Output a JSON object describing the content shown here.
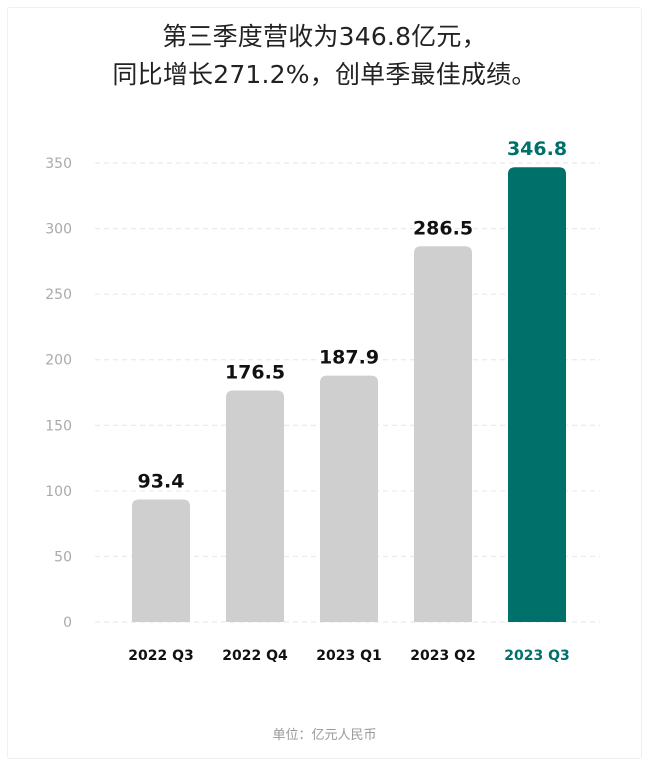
{
  "title": {
    "line1": "第三季度营收为346.8亿元，",
    "line2": "同比增长271.2%，创单季最佳成绩。"
  },
  "footnote": "单位：亿元人民币",
  "colors": {
    "bar_default": "#cfcfcf",
    "bar_highlight": "#00706b",
    "label_default": "#111111",
    "label_highlight": "#00706b",
    "axis_tick": "#aaaaaa",
    "grid": "#e6e6e6"
  },
  "chart_data": {
    "type": "bar",
    "categories": [
      "2022 Q3",
      "2022 Q4",
      "2023 Q1",
      "2023 Q2",
      "2023 Q3"
    ],
    "values": [
      93.4,
      176.5,
      187.9,
      286.5,
      346.8
    ],
    "value_labels": [
      "93.4",
      "176.5",
      "187.9",
      "286.5",
      "346.8"
    ],
    "highlight_index": 4,
    "ylim": [
      0,
      350
    ],
    "yticks": [
      0,
      50,
      100,
      150,
      200,
      250,
      300,
      350
    ],
    "grid": true,
    "grid_style": "dashed"
  }
}
